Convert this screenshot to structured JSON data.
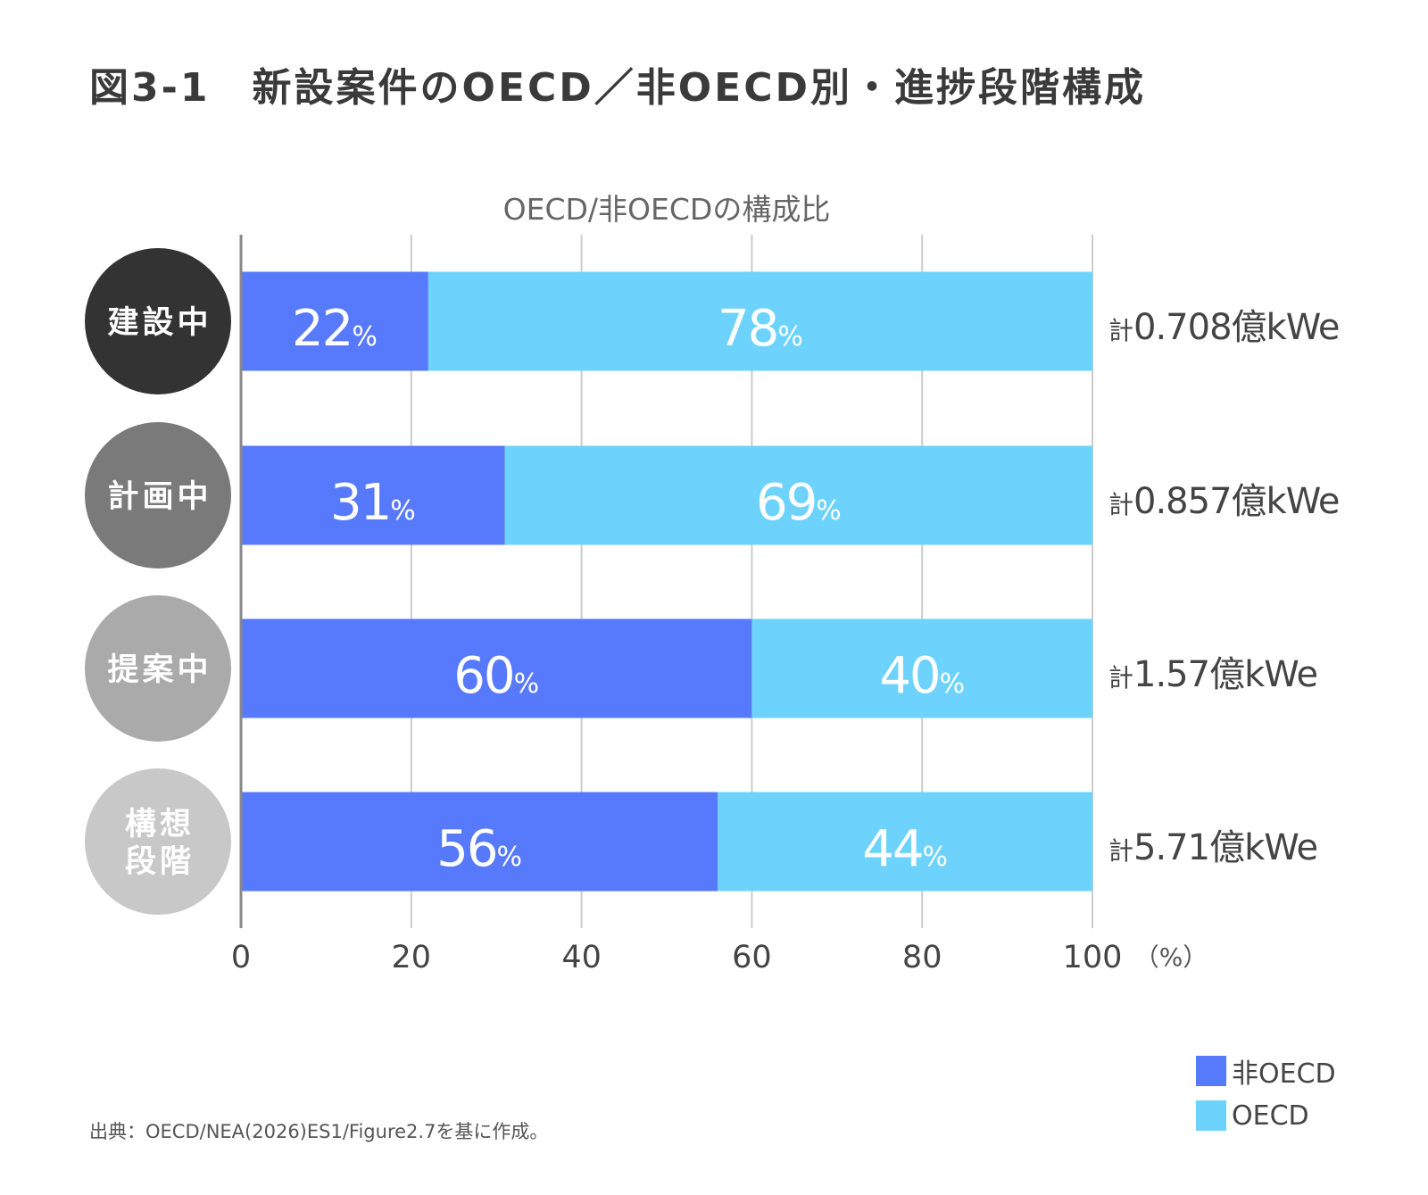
{
  "title": "図3-1　新設案件のOECD／非OECD別・進捗段階構成",
  "source_note": "出典：OECD/NEA(2026)ES1/Figure2.7を基に作成。",
  "colors": {
    "non_oecd": "#5779fb",
    "oecd": "#6dd3fc",
    "stage_construction": "#333333",
    "stage_planned": "#7a7a7a",
    "stage_proposed": "#aaaaaa",
    "stage_concept": "#c8c8c8",
    "grid": "#cccccc",
    "axis": "#888888"
  },
  "legend": {
    "items": [
      {
        "label": "非OECD",
        "color": "#5779fb"
      },
      {
        "label": "OECD",
        "color": "#6dd3fc"
      }
    ]
  },
  "chart_data": {
    "type": "bar",
    "orientation": "horizontal",
    "stacked": true,
    "title": "OECD/非OECDの構成比",
    "xlim": [
      0,
      100
    ],
    "xticks": [
      "0",
      "20",
      "40",
      "60",
      "80",
      "100"
    ],
    "xunit": "（%）",
    "grid": true,
    "legend_position": "bottom-right",
    "percent_sign": "%",
    "total_prefix": "計",
    "categories": [
      "建設中",
      "計画中",
      "提案中",
      "構想段階"
    ],
    "category_lines": [
      [
        "建設中"
      ],
      [
        "計画中"
      ],
      [
        "提案中"
      ],
      [
        "構想",
        "段階"
      ]
    ],
    "series": [
      {
        "name": "非OECD",
        "values": [
          22,
          31,
          60,
          56
        ]
      },
      {
        "name": "OECD",
        "values": [
          78,
          69,
          40,
          44
        ]
      }
    ],
    "totals": [
      "0.708億kWe",
      "0.857億kWe",
      "1.57億kWe",
      "5.71億kWe"
    ]
  }
}
